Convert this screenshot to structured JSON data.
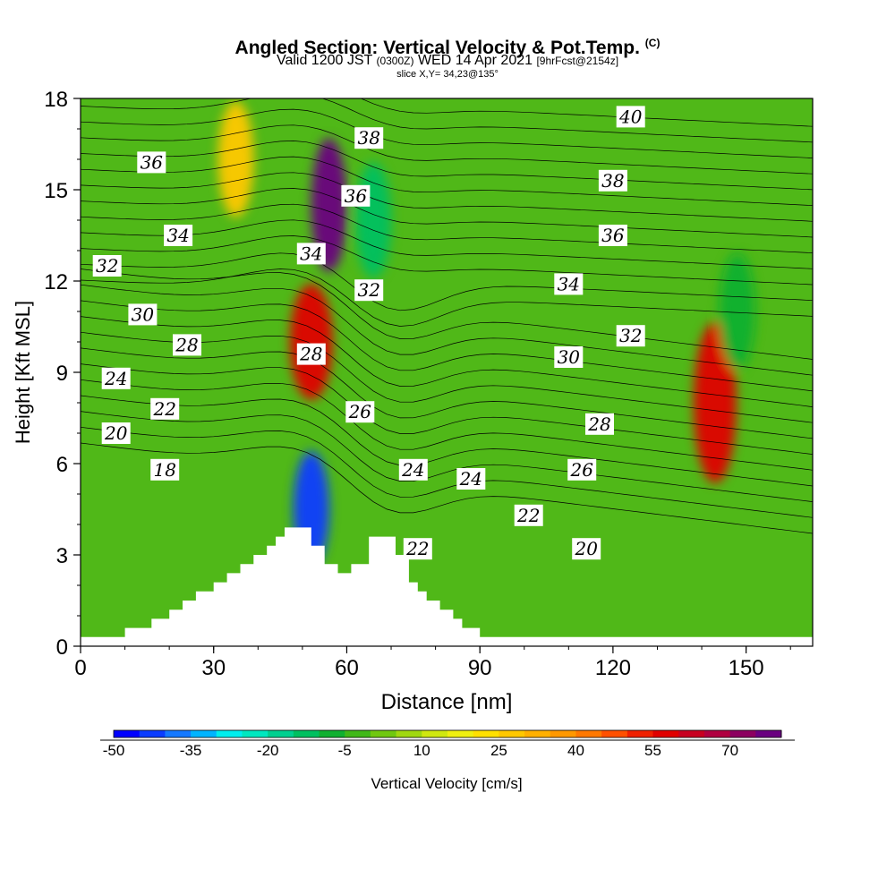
{
  "title": {
    "main": "Angled Section: Vertical Velocity & Pot.Temp.",
    "main_suffix": "(C)",
    "valid_prefix": "Valid 1200 JST",
    "valid_utc": "(0300Z)",
    "valid_date": "WED 14 Apr 2021",
    "forecast": "[9hrFcst@2154z]",
    "slice": "slice X,Y= 34,23@135°"
  },
  "chart_data": {
    "type": "heatmap",
    "xlabel": "Distance [nm]",
    "ylabel": "Height [Kft MSL]",
    "xlim": [
      0,
      165
    ],
    "ylim": [
      0,
      18
    ],
    "x_ticks": [
      "0",
      "30",
      "60",
      "90",
      "120",
      "150"
    ],
    "y_ticks": [
      "0",
      "3",
      "6",
      "9",
      "12",
      "15",
      "18"
    ],
    "x_tick_values": [
      0,
      30,
      60,
      90,
      120,
      150
    ],
    "y_tick_values": [
      0,
      3,
      6,
      9,
      12,
      15,
      18
    ],
    "colorbar": {
      "label": "Vertical Velocity [cm/s]",
      "min": -50,
      "max": 80,
      "step": 5,
      "tick_labels": [
        "-50",
        "-35",
        "-20",
        "-5",
        "10",
        "25",
        "40",
        "55",
        "70"
      ],
      "tick_values": [
        -50,
        -35,
        -20,
        -5,
        10,
        25,
        40,
        55,
        70
      ],
      "colors": [
        "#0000ff",
        "#0a3cff",
        "#1478ff",
        "#00b4ff",
        "#00eeee",
        "#00e8c0",
        "#00d090",
        "#00c060",
        "#10b030",
        "#40b818",
        "#70c810",
        "#a0d810",
        "#d0e810",
        "#f0f010",
        "#ffe000",
        "#ffc800",
        "#ffb000",
        "#ff9800",
        "#ff7800",
        "#ff5000",
        "#f02000",
        "#e00000",
        "#c80020",
        "#b00040",
        "#8c0060",
        "#6a0080"
      ]
    },
    "terrain": [
      [
        0,
        0.3
      ],
      [
        10,
        0.3
      ],
      [
        10,
        0.6
      ],
      [
        16,
        0.6
      ],
      [
        16,
        0.9
      ],
      [
        20,
        0.9
      ],
      [
        20,
        1.2
      ],
      [
        23,
        1.2
      ],
      [
        23,
        1.5
      ],
      [
        26,
        1.5
      ],
      [
        26,
        1.8
      ],
      [
        30,
        1.8
      ],
      [
        30,
        2.1
      ],
      [
        33,
        2.1
      ],
      [
        33,
        2.4
      ],
      [
        36,
        2.4
      ],
      [
        36,
        2.7
      ],
      [
        39,
        2.7
      ],
      [
        39,
        3.0
      ],
      [
        42,
        3.0
      ],
      [
        42,
        3.3
      ],
      [
        44,
        3.3
      ],
      [
        44,
        3.6
      ],
      [
        46,
        3.6
      ],
      [
        46,
        3.9
      ],
      [
        52,
        3.9
      ],
      [
        52,
        3.3
      ],
      [
        55,
        3.3
      ],
      [
        55,
        2.7
      ],
      [
        58,
        2.7
      ],
      [
        58,
        2.4
      ],
      [
        61,
        2.4
      ],
      [
        61,
        2.7
      ],
      [
        65,
        2.7
      ],
      [
        65,
        3.6
      ],
      [
        71,
        3.6
      ],
      [
        71,
        3.0
      ],
      [
        74,
        3.0
      ],
      [
        74,
        2.1
      ],
      [
        76,
        2.1
      ],
      [
        76,
        1.8
      ],
      [
        78,
        1.8
      ],
      [
        78,
        1.5
      ],
      [
        81,
        1.5
      ],
      [
        81,
        1.2
      ],
      [
        84,
        1.2
      ],
      [
        84,
        0.9
      ],
      [
        86,
        0.9
      ],
      [
        86,
        0.6
      ],
      [
        90,
        0.6
      ],
      [
        90,
        0.3
      ],
      [
        165,
        0.3
      ]
    ],
    "velocity_features": [
      {
        "name": "strong-updraft",
        "x": 56,
        "y": 14.5,
        "value": 75
      },
      {
        "name": "updraft-column",
        "x": 52,
        "y": 10,
        "value": 55
      },
      {
        "name": "downdraft-lee",
        "x": 52,
        "y": 4.5,
        "value": -45
      },
      {
        "name": "downdraft-band",
        "x": 66,
        "y": 14,
        "value": -15
      },
      {
        "name": "updraft-east",
        "x": 143,
        "y": 8,
        "value": 55
      },
      {
        "name": "downdraft-east",
        "x": 148,
        "y": 11,
        "value": -10
      },
      {
        "name": "mild-updraft-west",
        "x": 35,
        "y": 16,
        "value": 25
      }
    ],
    "theta_contours": {
      "levels_C": [
        16,
        17,
        18,
        19,
        20,
        21,
        22,
        23,
        24,
        25,
        26,
        27,
        28,
        29,
        30,
        31,
        32,
        33,
        34,
        35,
        36,
        37,
        38,
        39,
        40
      ],
      "labels": [
        {
          "text": "36",
          "x": 16,
          "y": 15.9
        },
        {
          "text": "34",
          "x": 22,
          "y": 13.5
        },
        {
          "text": "32",
          "x": 6,
          "y": 12.5
        },
        {
          "text": "30",
          "x": 14,
          "y": 10.9
        },
        {
          "text": "28",
          "x": 24,
          "y": 9.9
        },
        {
          "text": "24",
          "x": 8,
          "y": 8.8
        },
        {
          "text": "22",
          "x": 19,
          "y": 7.8
        },
        {
          "text": "20",
          "x": 8,
          "y": 7.0
        },
        {
          "text": "18",
          "x": 19,
          "y": 5.8
        },
        {
          "text": "38",
          "x": 65,
          "y": 16.7
        },
        {
          "text": "36",
          "x": 62,
          "y": 14.8
        },
        {
          "text": "34",
          "x": 52,
          "y": 12.9
        },
        {
          "text": "32",
          "x": 65,
          "y": 11.7
        },
        {
          "text": "28",
          "x": 52,
          "y": 9.6
        },
        {
          "text": "26",
          "x": 63,
          "y": 7.7
        },
        {
          "text": "24",
          "x": 75,
          "y": 5.8
        },
        {
          "text": "24",
          "x": 88,
          "y": 5.5
        },
        {
          "text": "22",
          "x": 76,
          "y": 3.2
        },
        {
          "text": "22",
          "x": 101,
          "y": 4.3
        },
        {
          "text": "20",
          "x": 114,
          "y": 3.2
        },
        {
          "text": "26",
          "x": 113,
          "y": 5.8
        },
        {
          "text": "28",
          "x": 117,
          "y": 7.3
        },
        {
          "text": "30",
          "x": 110,
          "y": 9.5
        },
        {
          "text": "32",
          "x": 124,
          "y": 10.2
        },
        {
          "text": "34",
          "x": 110,
          "y": 11.9
        },
        {
          "text": "36",
          "x": 120,
          "y": 13.5
        },
        {
          "text": "38",
          "x": 120,
          "y": 15.3
        },
        {
          "text": "40",
          "x": 124,
          "y": 17.4
        }
      ]
    },
    "grid": false,
    "legend": "bottom"
  }
}
